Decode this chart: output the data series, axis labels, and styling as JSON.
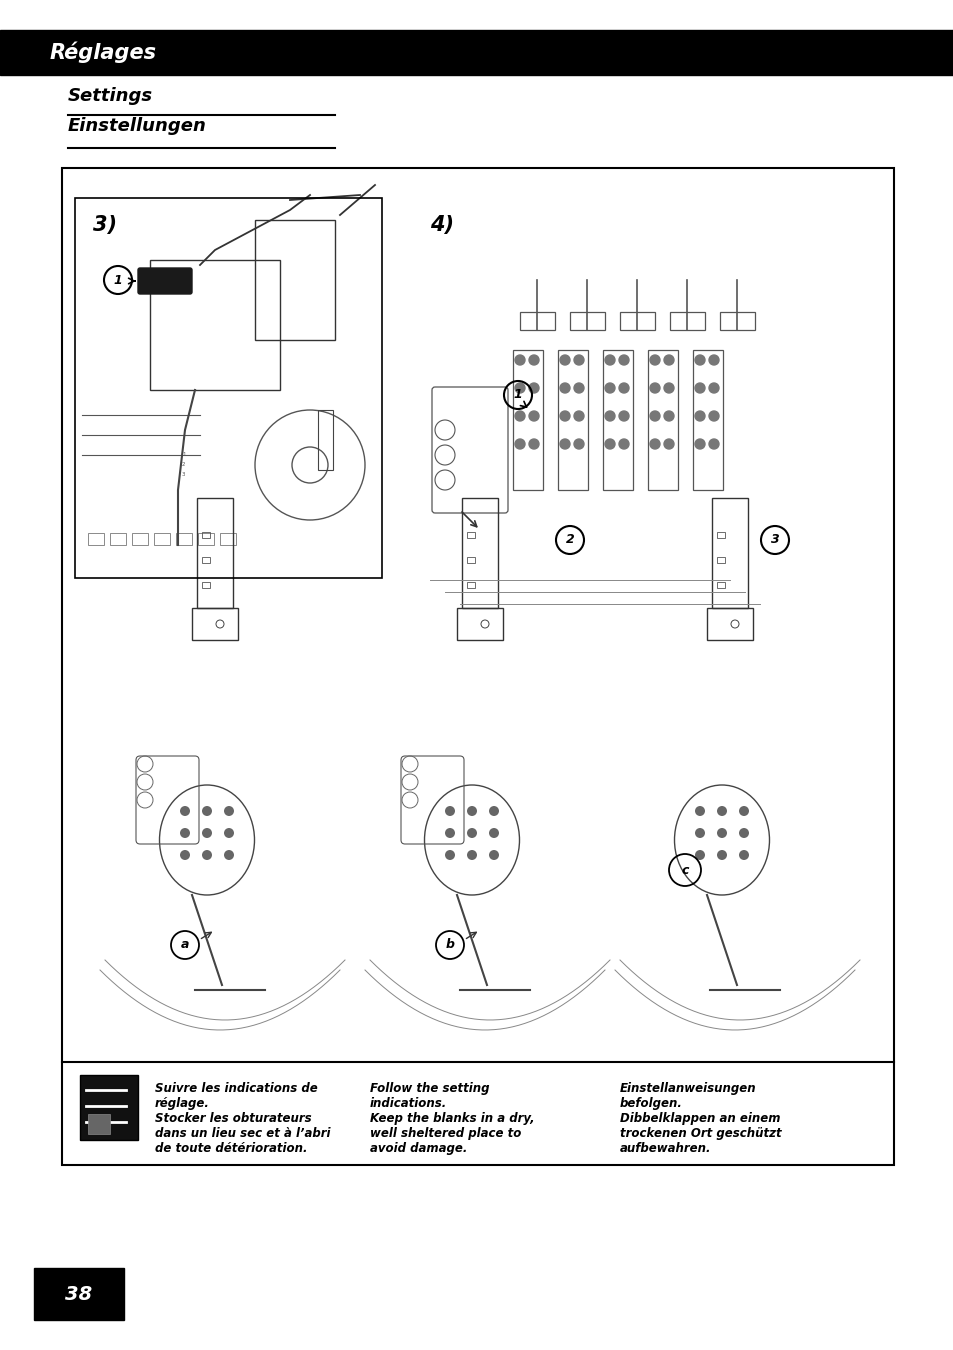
{
  "bg_color": "#ffffff",
  "header_bar_color": "#000000",
  "header_text": "Réglages",
  "header_text_color": "#ffffff",
  "subtitle1": "Settings",
  "subtitle2": "Einstellungen",
  "label3": "3)",
  "label4": "4)",
  "label_a": "a",
  "label_b": "b",
  "label_c": "c",
  "page_number": "38",
  "footer_fr_line1": "Suivre les indications de",
  "footer_fr_line2": "réglage.",
  "footer_fr_line3": "Stocker les obturateurs",
  "footer_fr_line4": "dans un lieu sec et à l’abri",
  "footer_fr_line5": "de toute détérioration.",
  "footer_en_line1": "Follow the setting",
  "footer_en_line2": "indications.",
  "footer_en_line3": "Keep the blanks in a dry,",
  "footer_en_line4": "well sheltered place to",
  "footer_en_line5": "avoid damage.",
  "footer_de_line1": "Einstellanweisungen",
  "footer_de_line2": "befolgen.",
  "footer_de_line3": "Dibbelklappen an einem",
  "footer_de_line4": "trockenen Ort geschützt",
  "footer_de_line5": "aufbewahren."
}
